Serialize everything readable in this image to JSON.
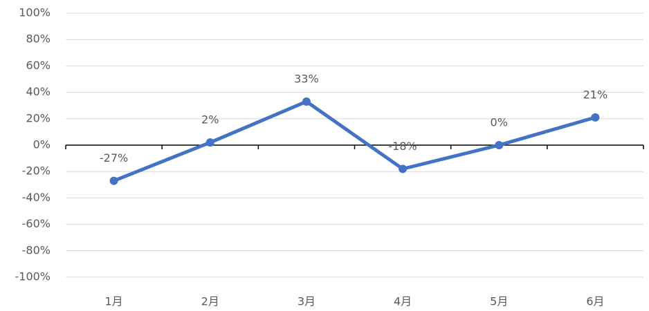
{
  "chart_data": {
    "type": "line",
    "categories": [
      "1月",
      "2月",
      "3月",
      "4月",
      "5月",
      "6月"
    ],
    "values": [
      -27,
      2,
      33,
      -18,
      0,
      21
    ],
    "value_labels": [
      "-27%",
      "2%",
      "33%",
      "-18%",
      "0%",
      "21%"
    ],
    "color": "#4472c4",
    "ylim": [
      -100,
      100
    ],
    "yticks": [
      {
        "value": -100,
        "label": "-100%"
      },
      {
        "value": -80,
        "label": "-80%"
      },
      {
        "value": -60,
        "label": "-60%"
      },
      {
        "value": -40,
        "label": "-40%"
      },
      {
        "value": -20,
        "label": "-20%"
      },
      {
        "value": 0,
        "label": "0%"
      },
      {
        "value": 20,
        "label": "20%"
      },
      {
        "value": 40,
        "label": "40%"
      },
      {
        "value": 60,
        "label": "60%"
      },
      {
        "value": 80,
        "label": "80%"
      },
      {
        "value": 100,
        "label": "100%"
      }
    ],
    "grid": true
  }
}
